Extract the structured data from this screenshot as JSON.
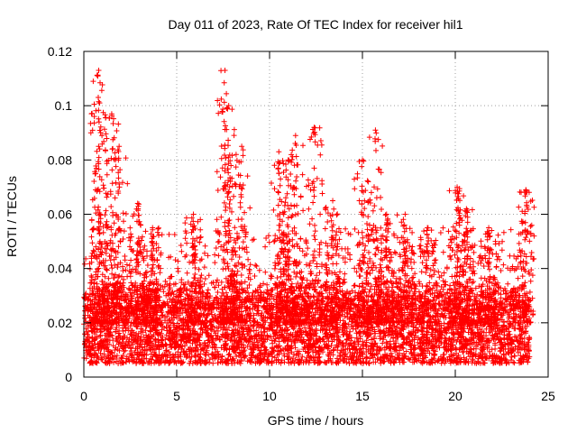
{
  "chart_data": {
    "type": "scatter",
    "title": "Day 011 of 2023, Rate Of TEC Index for receiver hil1",
    "xlabel": "GPS time / hours",
    "ylabel": "ROTI / TECUs",
    "xlim": [
      0,
      25
    ],
    "ylim": [
      0,
      0.12
    ],
    "x_ticks": [
      0,
      5,
      10,
      15,
      20,
      25
    ],
    "x_tick_labels": [
      "0",
      "5",
      "10",
      "15",
      "20",
      "25"
    ],
    "y_ticks": [
      0,
      0.02,
      0.04,
      0.06,
      0.08,
      0.1,
      0.12
    ],
    "y_tick_labels": [
      "0",
      "0.02",
      "0.04",
      "0.06",
      "0.08",
      "0.1",
      "0.12"
    ],
    "grid": true,
    "marker": "plus",
    "series": [
      {
        "name": "ROTI",
        "color": "#ff0000",
        "x_range": [
          0,
          24
        ],
        "baseline_range": [
          0.005,
          0.03
        ],
        "peaks": [
          {
            "x": 0.8,
            "y": 0.113
          },
          {
            "x": 0.85,
            "y": 0.101
          },
          {
            "x": 1.5,
            "y": 0.097
          },
          {
            "x": 1.9,
            "y": 0.085
          },
          {
            "x": 2.9,
            "y": 0.064
          },
          {
            "x": 3.7,
            "y": 0.055
          },
          {
            "x": 5.9,
            "y": 0.06
          },
          {
            "x": 7.6,
            "y": 0.113
          },
          {
            "x": 7.8,
            "y": 0.1
          },
          {
            "x": 8.5,
            "y": 0.085
          },
          {
            "x": 10.5,
            "y": 0.083
          },
          {
            "x": 11.0,
            "y": 0.08
          },
          {
            "x": 11.4,
            "y": 0.089
          },
          {
            "x": 12.4,
            "y": 0.092
          },
          {
            "x": 13.4,
            "y": 0.065
          },
          {
            "x": 15.0,
            "y": 0.08
          },
          {
            "x": 15.7,
            "y": 0.091
          },
          {
            "x": 16.3,
            "y": 0.06
          },
          {
            "x": 17.3,
            "y": 0.06
          },
          {
            "x": 18.5,
            "y": 0.055
          },
          {
            "x": 20.1,
            "y": 0.07
          },
          {
            "x": 20.6,
            "y": 0.062
          },
          {
            "x": 21.8,
            "y": 0.055
          },
          {
            "x": 23.8,
            "y": 0.069
          }
        ]
      }
    ]
  }
}
